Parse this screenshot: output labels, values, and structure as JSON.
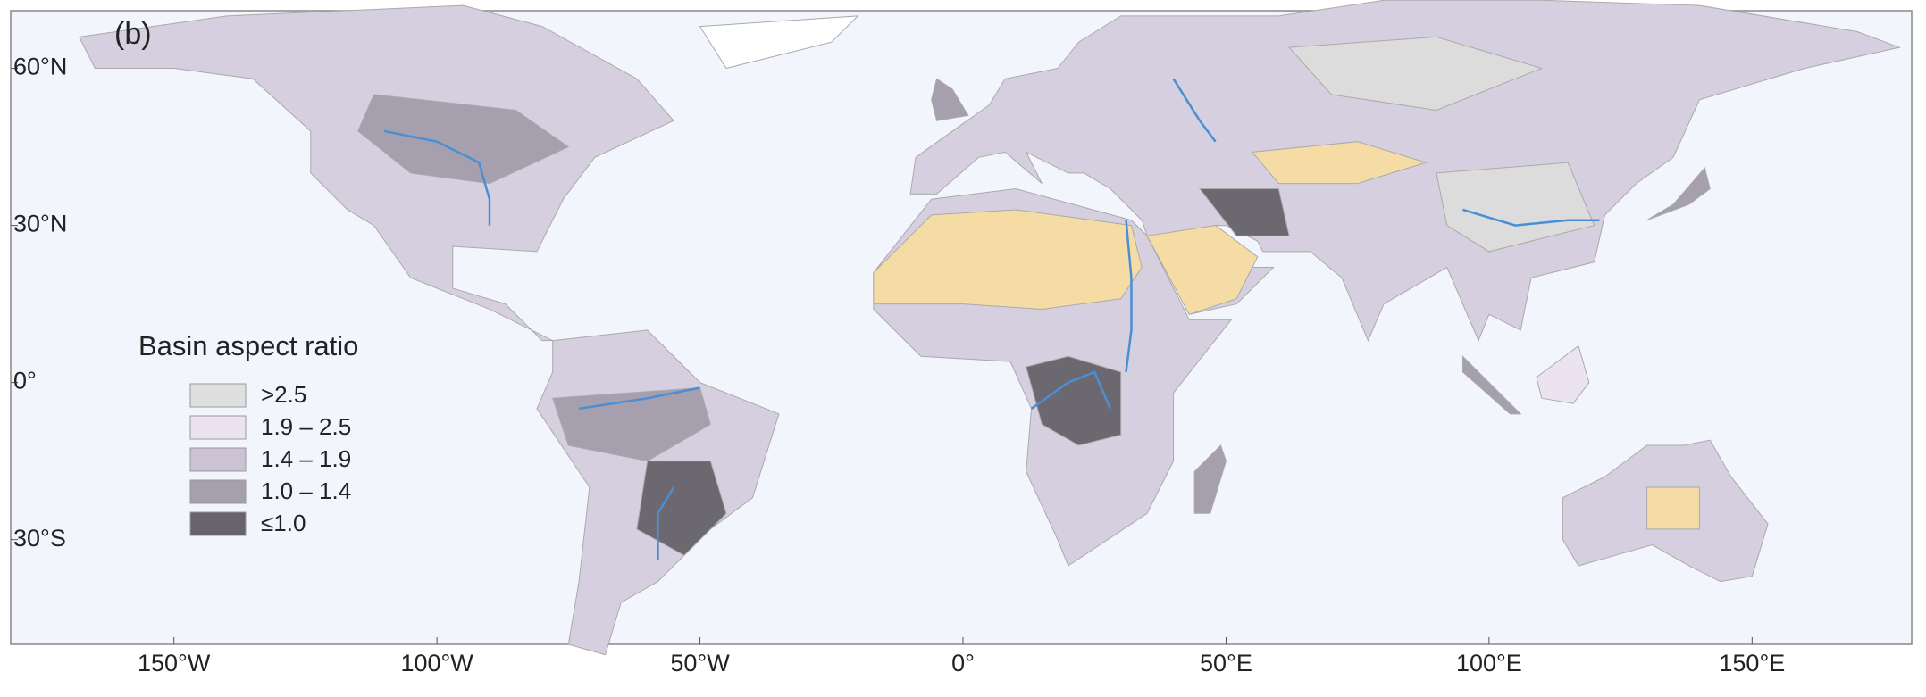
{
  "panel_label": "(b)",
  "map": {
    "xlim": [
      -180,
      180
    ],
    "ylim": [
      -50,
      71
    ],
    "xticks": [
      {
        "value": -150,
        "label": "150°W"
      },
      {
        "value": -100,
        "label": "100°W"
      },
      {
        "value": -50,
        "label": "50°W"
      },
      {
        "value": 0,
        "label": "0°"
      },
      {
        "value": 50,
        "label": "50°E"
      },
      {
        "value": 100,
        "label": "100°E"
      },
      {
        "value": 150,
        "label": "150°E"
      }
    ],
    "yticks": [
      {
        "value": 60,
        "label": "60°N"
      },
      {
        "value": 30,
        "label": "30°N"
      },
      {
        "value": 0,
        "label": "0°"
      },
      {
        "value": -30,
        "label": "30°S"
      }
    ]
  },
  "legend": {
    "title": "Basin aspect ratio",
    "items": [
      {
        "label": ">2.5",
        "color": "#dfdfdf"
      },
      {
        "label": "1.9 – 2.5",
        "color": "#ebe3f0"
      },
      {
        "label": "1.4 – 1.9",
        "color": "#cbc2d3"
      },
      {
        "label": "1.0 – 1.4",
        "color": "#a59fae"
      },
      {
        "label": "≤1.0",
        "color": "#67646c"
      }
    ]
  }
}
